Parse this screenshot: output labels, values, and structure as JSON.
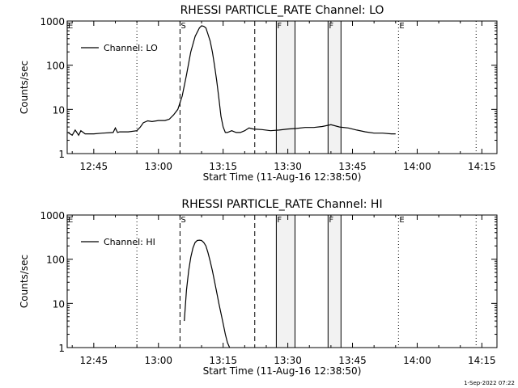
{
  "chart_data": [
    {
      "type": "line",
      "title": "RHESSI PARTICLE_RATE Channel: LO",
      "xlabel": "Start Time (11-Aug-16 12:38:50)",
      "ylabel": "Counts/sec",
      "yscale": "log",
      "ylim": [
        1,
        1000
      ],
      "xlim": [
        "12:38:50",
        "14:18:30"
      ],
      "x_ticks": [
        "12:45",
        "13:00",
        "13:15",
        "13:30",
        "13:45",
        "14:00",
        "14:15"
      ],
      "y_ticks": [
        "1",
        "10",
        "100",
        "1000"
      ],
      "legend": {
        "entries": [
          "Channel: LO"
        ],
        "placement": "top-left"
      },
      "markers": [
        {
          "label": "E",
          "time": "12:38:50",
          "style": "dotted"
        },
        {
          "label": "",
          "time": "12:55:00",
          "style": "dotted"
        },
        {
          "label": "S",
          "time": "13:05:00",
          "style": "dashed"
        },
        {
          "label": "",
          "time": "13:22:20",
          "style": "dashed"
        },
        {
          "label": "F",
          "time": "13:27:20",
          "style": "solid"
        },
        {
          "label": "",
          "time": "13:31:40",
          "style": "solid"
        },
        {
          "label": "F",
          "time": "13:39:20",
          "style": "solid"
        },
        {
          "label": "",
          "time": "13:42:20",
          "style": "solid"
        },
        {
          "label": "E",
          "time": "13:55:40",
          "style": "dotted"
        },
        {
          "label": "",
          "time": "14:13:40",
          "style": "dotted"
        }
      ],
      "shaded_intervals": [
        [
          "13:27:20",
          "13:31:40"
        ],
        [
          "13:39:20",
          "13:42:20"
        ]
      ],
      "series": [
        {
          "name": "Channel: LO",
          "x_minutes_after_1200": [
            39.0,
            40.0,
            40.7,
            41.5,
            42.0,
            43.0,
            45.0,
            47.0,
            49.5,
            50.0,
            50.5,
            51.0,
            53.0,
            55.0,
            55.8,
            56.5,
            57.5,
            58.5,
            60.0,
            61.5,
            62.5,
            63.5,
            64.5,
            65.5,
            66.5,
            67.5,
            68.5,
            69.5,
            70.0,
            70.5,
            71.0,
            71.5,
            72.0,
            72.5,
            73.0,
            73.5,
            74.0,
            74.5,
            75.0,
            75.5,
            76.0,
            77.0,
            78.0,
            79.0,
            80.0,
            81.0,
            82.0,
            84.0,
            86.0,
            88.0,
            90.0,
            92.0,
            94.0,
            96.0,
            98.0,
            100.0,
            102.0,
            104.0,
            106.0,
            108.0,
            110.0,
            112.0,
            114.0,
            115.0
          ],
          "y": [
            3.0,
            2.6,
            3.4,
            2.6,
            3.3,
            2.8,
            2.8,
            2.9,
            3.0,
            3.8,
            3.0,
            3.1,
            3.1,
            3.3,
            4.0,
            5.0,
            5.5,
            5.3,
            5.6,
            5.6,
            6.0,
            7.5,
            10.0,
            20.0,
            60.0,
            200.0,
            450.0,
            700.0,
            780.0,
            760.0,
            700.0,
            500.0,
            350.0,
            200.0,
            100.0,
            45.0,
            18.0,
            7.0,
            4.0,
            3.0,
            3.0,
            3.3,
            3.0,
            3.0,
            3.3,
            3.8,
            3.6,
            3.5,
            3.3,
            3.4,
            3.6,
            3.7,
            3.9,
            3.9,
            4.1,
            4.5,
            4.0,
            3.8,
            3.4,
            3.1,
            2.9,
            2.9,
            2.8,
            2.8
          ]
        }
      ]
    },
    {
      "type": "line",
      "title": "RHESSI PARTICLE_RATE Channel: HI",
      "xlabel": "Start Time (11-Aug-16 12:38:50)",
      "ylabel": "Counts/sec",
      "yscale": "log",
      "ylim": [
        1,
        1000
      ],
      "xlim": [
        "12:38:50",
        "14:18:30"
      ],
      "x_ticks": [
        "12:45",
        "13:00",
        "13:15",
        "13:30",
        "13:45",
        "14:00",
        "14:15"
      ],
      "y_ticks": [
        "1",
        "10",
        "100",
        "1000"
      ],
      "legend": {
        "entries": [
          "Channel: HI"
        ],
        "placement": "top-left"
      },
      "markers": [
        {
          "label": "E",
          "time": "12:38:50",
          "style": "dotted"
        },
        {
          "label": "",
          "time": "12:55:00",
          "style": "dotted"
        },
        {
          "label": "S",
          "time": "13:05:00",
          "style": "dashed"
        },
        {
          "label": "",
          "time": "13:22:20",
          "style": "dashed"
        },
        {
          "label": "F",
          "time": "13:27:20",
          "style": "solid"
        },
        {
          "label": "",
          "time": "13:31:40",
          "style": "solid"
        },
        {
          "label": "F",
          "time": "13:39:20",
          "style": "solid"
        },
        {
          "label": "",
          "time": "13:42:20",
          "style": "solid"
        },
        {
          "label": "E",
          "time": "13:55:40",
          "style": "dotted"
        },
        {
          "label": "",
          "time": "14:13:40",
          "style": "dotted"
        }
      ],
      "shaded_intervals": [
        [
          "13:27:20",
          "13:31:40"
        ],
        [
          "13:39:20",
          "13:42:20"
        ]
      ],
      "series": [
        {
          "name": "Channel: HI",
          "x_minutes_after_1200": [
            66.0,
            66.5,
            67.0,
            67.5,
            68.0,
            68.5,
            69.0,
            69.5,
            70.0,
            70.5,
            71.0,
            71.5,
            72.0,
            72.5,
            73.0,
            73.5,
            74.0,
            74.5,
            75.0,
            75.5,
            76.0,
            76.5
          ],
          "y": [
            4.0,
            20.0,
            55.0,
            110.0,
            180.0,
            240.0,
            265.0,
            270.0,
            265.0,
            240.0,
            200.0,
            140.0,
            90.0,
            55.0,
            32.0,
            18.0,
            10.0,
            6.0,
            3.5,
            2.0,
            1.3,
            1.0
          ]
        }
      ]
    }
  ],
  "footer": {
    "stamp": "1-Sep-2022 07:22"
  }
}
